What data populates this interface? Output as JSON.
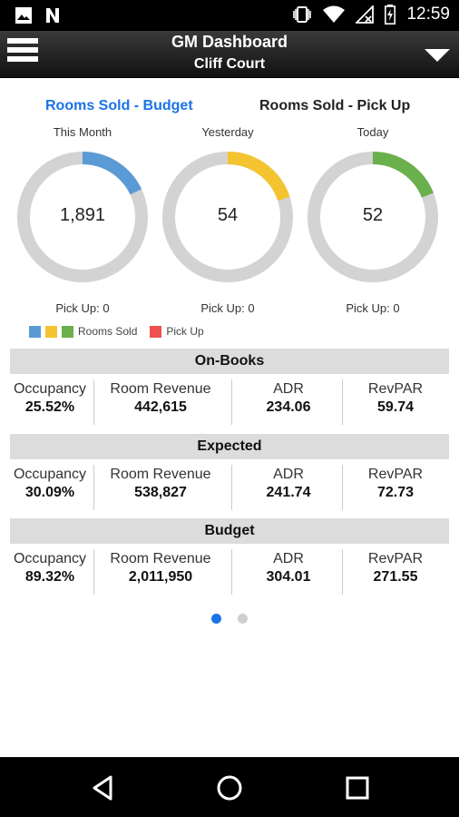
{
  "status_bar": {
    "time": "12:59",
    "left_icons": [
      "image-icon",
      "n-app-icon"
    ],
    "right_icons": [
      "vibrate-icon",
      "wifi-icon",
      "signal-off-icon",
      "battery-charging-icon"
    ]
  },
  "app_bar": {
    "title": "GM Dashboard",
    "subtitle": "Cliff Court"
  },
  "tabs": [
    {
      "label": "Rooms Sold - Budget",
      "active": true
    },
    {
      "label": "Rooms Sold - Pick Up",
      "active": false
    }
  ],
  "gauges": [
    {
      "period": "This Month",
      "value": "1,891",
      "fraction": 0.18,
      "color": "#5b9bd5",
      "pickup": "Pick Up: 0"
    },
    {
      "period": "Yesterday",
      "value": "54",
      "fraction": 0.2,
      "color": "#f4c430",
      "pickup": "Pick Up: 0"
    },
    {
      "period": "Today",
      "value": "52",
      "fraction": 0.19,
      "color": "#6ab04c",
      "pickup": "Pick Up: 0"
    }
  ],
  "legend": {
    "rooms_sold_label": "Rooms Sold",
    "pickup_label": "Pick Up",
    "rooms_sold_colors": [
      "#5b9bd5",
      "#f4c430",
      "#6ab04c"
    ],
    "pickup_color": "#ef5050"
  },
  "sections": [
    {
      "title": "On-Books",
      "occupancy_label": "Occupancy",
      "occupancy": "25.52%",
      "revenue_label": "Room Revenue",
      "revenue": "442,615",
      "adr_label": "ADR",
      "adr": "234.06",
      "revpar_label": "RevPAR",
      "revpar": "59.74"
    },
    {
      "title": "Expected",
      "occupancy_label": "Occupancy",
      "occupancy": "30.09%",
      "revenue_label": "Room Revenue",
      "revenue": "538,827",
      "adr_label": "ADR",
      "adr": "241.74",
      "revpar_label": "RevPAR",
      "revpar": "72.73"
    },
    {
      "title": "Budget",
      "occupancy_label": "Occupancy",
      "occupancy": "89.32%",
      "revenue_label": "Room Revenue",
      "revenue": "2,011,950",
      "adr_label": "ADR",
      "adr": "304.01",
      "revpar_label": "RevPAR",
      "revpar": "271.55"
    }
  ],
  "pager": {
    "pages": 2,
    "current": 1,
    "active_color": "#1a73e8",
    "inactive_color": "#cfcfcf"
  },
  "colors": {
    "track": "#d3d3d3",
    "accent": "#1a73e8"
  }
}
